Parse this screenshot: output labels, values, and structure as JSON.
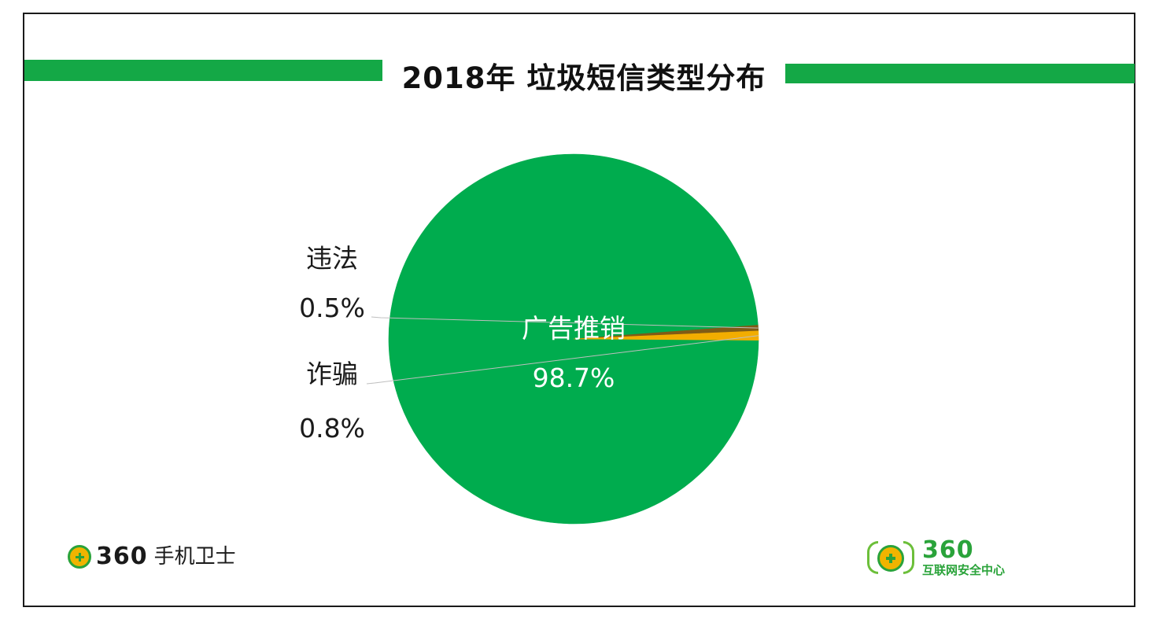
{
  "title": "2018年 垃圾短信类型分布",
  "chart_data": {
    "type": "pie",
    "title": "2018年 垃圾短信类型分布",
    "slices": [
      {
        "label": "广告推销",
        "value": 98.7,
        "display": "98.7%",
        "color": "#00ac4e"
      },
      {
        "label": "违法",
        "value": 0.5,
        "display": "0.5%",
        "color": "#7f5b16"
      },
      {
        "label": "诈骗",
        "value": 0.8,
        "display": "0.8%",
        "color": "#f2ad00"
      }
    ],
    "legend": "none"
  },
  "logos": {
    "left": {
      "number": "360",
      "name": "手机卫士"
    },
    "right": {
      "number": "360",
      "name": "互联网安全中心"
    }
  },
  "colors": {
    "accent": "#14a846",
    "leader_line": "#bfbfbf"
  }
}
